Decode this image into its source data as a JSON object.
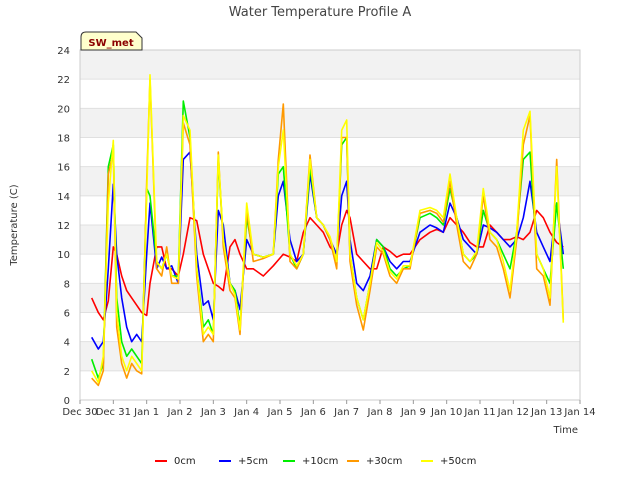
{
  "chart_data": {
    "type": "line",
    "title": "Water Temperature Profile A",
    "xlabel": "Time",
    "ylabel": "Temperature (C)",
    "badge": "SW_met",
    "ylim": [
      0,
      24
    ],
    "yticks": [
      0,
      2,
      4,
      6,
      8,
      10,
      12,
      14,
      16,
      18,
      20,
      22,
      24
    ],
    "xlim": [
      0,
      15
    ],
    "xticks": [
      {
        "pos": 0,
        "label": "Dec 30"
      },
      {
        "pos": 1,
        "label": "Dec 31"
      },
      {
        "pos": 2,
        "label": "Jan 1"
      },
      {
        "pos": 3,
        "label": "Jan 2"
      },
      {
        "pos": 4,
        "label": "Jan 3"
      },
      {
        "pos": 5,
        "label": "Jan 4"
      },
      {
        "pos": 6,
        "label": "Jan 5"
      },
      {
        "pos": 7,
        "label": "Jan 6"
      },
      {
        "pos": 8,
        "label": "Jan 7"
      },
      {
        "pos": 9,
        "label": "Jan 8"
      },
      {
        "pos": 10,
        "label": "Jan 9"
      },
      {
        "pos": 11,
        "label": "Jan 10"
      },
      {
        "pos": 12,
        "label": "Jan 11"
      },
      {
        "pos": 13,
        "label": "Jan 12"
      },
      {
        "pos": 14,
        "label": "Jan 13"
      },
      {
        "pos": 15,
        "label": "Jan 14"
      }
    ],
    "grid": "horizontal bands",
    "legend_position": "bottom",
    "series": [
      {
        "name": "0cm",
        "color": "#ff0000",
        "x": [
          0.35,
          0.55,
          0.7,
          0.85,
          1.0,
          1.1,
          1.25,
          1.4,
          1.55,
          1.7,
          1.85,
          2.0,
          2.1,
          2.3,
          2.45,
          2.6,
          2.75,
          2.95,
          3.1,
          3.3,
          3.5,
          3.7,
          3.85,
          4.0,
          4.15,
          4.3,
          4.5,
          4.65,
          4.8,
          5.0,
          5.2,
          5.5,
          5.8,
          5.95,
          6.1,
          6.3,
          6.5,
          6.7,
          6.9,
          7.1,
          7.3,
          7.5,
          7.7,
          7.85,
          8.0,
          8.1,
          8.3,
          8.5,
          8.7,
          8.9,
          9.1,
          9.3,
          9.5,
          9.7,
          9.9,
          10.2,
          10.5,
          10.7,
          10.9,
          11.1,
          11.3,
          11.5,
          11.7,
          11.9,
          12.1,
          12.3,
          12.5,
          12.7,
          12.9,
          13.1,
          13.3,
          13.5,
          13.7,
          13.9,
          14.1,
          14.3,
          14.5
        ],
        "y": [
          7.0,
          6.0,
          5.5,
          6.8,
          10.5,
          10.0,
          8.5,
          7.5,
          7.0,
          6.5,
          6.0,
          5.8,
          8.0,
          10.5,
          10.5,
          9.0,
          9.0,
          8.5,
          10.0,
          12.5,
          12.3,
          10.0,
          9.0,
          8.0,
          7.8,
          7.5,
          10.5,
          11.0,
          10.0,
          9.0,
          9.0,
          8.5,
          9.2,
          9.6,
          10.0,
          9.8,
          9.5,
          11.5,
          12.5,
          12.0,
          11.5,
          10.5,
          10.0,
          12.0,
          13.0,
          12.5,
          10.0,
          9.5,
          9.0,
          9.0,
          10.5,
          10.2,
          9.8,
          10.0,
          10.0,
          11.0,
          11.5,
          11.7,
          11.5,
          12.5,
          12.0,
          11.5,
          10.8,
          10.5,
          10.5,
          12.0,
          11.5,
          11.0,
          11.0,
          11.2,
          11.0,
          11.5,
          13.0,
          12.5,
          11.5,
          10.8,
          10.5
        ]
      },
      {
        "name": "+5cm",
        "color": "#0000ff",
        "x": [
          0.35,
          0.55,
          0.7,
          0.85,
          1.0,
          1.1,
          1.25,
          1.4,
          1.55,
          1.7,
          1.85,
          2.0,
          2.1,
          2.3,
          2.45,
          2.6,
          2.75,
          2.95,
          3.1,
          3.3,
          3.5,
          3.7,
          3.85,
          4.0,
          4.15,
          4.3,
          4.5,
          4.65,
          4.8,
          5.0,
          5.2,
          5.5,
          5.8,
          5.95,
          6.1,
          6.3,
          6.5,
          6.7,
          6.9,
          7.1,
          7.3,
          7.5,
          7.7,
          7.85,
          8.0,
          8.1,
          8.3,
          8.5,
          8.7,
          8.9,
          9.1,
          9.3,
          9.5,
          9.7,
          9.9,
          10.2,
          10.5,
          10.7,
          10.9,
          11.1,
          11.3,
          11.5,
          11.7,
          11.9,
          12.1,
          12.3,
          12.5,
          12.7,
          12.9,
          13.1,
          13.3,
          13.5,
          13.7,
          13.9,
          14.1,
          14.3,
          14.5
        ],
        "y": [
          4.3,
          3.5,
          4.0,
          9.0,
          14.8,
          10.0,
          7.0,
          5.0,
          4.0,
          4.5,
          4.0,
          10.0,
          13.5,
          9.0,
          9.8,
          9.0,
          9.2,
          8.0,
          16.5,
          17.0,
          10.0,
          6.5,
          6.8,
          5.5,
          13.0,
          12.0,
          8.0,
          7.5,
          6.2,
          11.0,
          10.0,
          9.8,
          10.0,
          14.0,
          15.0,
          11.0,
          9.5,
          10.0,
          15.5,
          12.5,
          12.0,
          11.0,
          10.0,
          14.0,
          15.0,
          11.0,
          8.0,
          7.5,
          8.5,
          11.0,
          10.5,
          9.5,
          9.0,
          9.5,
          9.5,
          11.5,
          12.0,
          11.8,
          11.5,
          13.5,
          12.5,
          11.0,
          10.5,
          10.0,
          12.0,
          11.8,
          11.5,
          11.0,
          10.5,
          11.0,
          12.5,
          15.0,
          11.5,
          10.5,
          9.5,
          13.5,
          10.0
        ]
      },
      {
        "name": "+10cm",
        "color": "#00ee00",
        "x": [
          0.35,
          0.55,
          0.7,
          0.85,
          1.0,
          1.1,
          1.25,
          1.4,
          1.55,
          1.7,
          1.85,
          2.0,
          2.1,
          2.3,
          2.45,
          2.6,
          2.75,
          2.95,
          3.1,
          3.3,
          3.5,
          3.7,
          3.85,
          4.0,
          4.15,
          4.3,
          4.5,
          4.65,
          4.8,
          5.0,
          5.2,
          5.5,
          5.8,
          5.95,
          6.1,
          6.3,
          6.5,
          6.7,
          6.9,
          7.1,
          7.3,
          7.5,
          7.7,
          7.85,
          8.0,
          8.1,
          8.3,
          8.5,
          8.7,
          8.9,
          9.1,
          9.3,
          9.5,
          9.7,
          9.9,
          10.2,
          10.5,
          10.7,
          10.9,
          11.1,
          11.3,
          11.5,
          11.7,
          11.9,
          12.1,
          12.3,
          12.5,
          12.7,
          12.9,
          13.1,
          13.3,
          13.5,
          13.7,
          13.9,
          14.1,
          14.3,
          14.5
        ],
        "y": [
          2.8,
          1.5,
          2.5,
          16.0,
          17.5,
          7.0,
          4.0,
          3.0,
          3.5,
          3.0,
          2.5,
          14.5,
          14.0,
          9.5,
          9.0,
          10.0,
          8.5,
          8.5,
          20.5,
          18.0,
          9.0,
          5.0,
          5.5,
          4.5,
          16.5,
          11.0,
          8.0,
          7.5,
          5.0,
          12.5,
          10.0,
          9.8,
          10.0,
          15.5,
          16.0,
          10.0,
          9.0,
          10.0,
          16.0,
          12.5,
          12.0,
          11.0,
          9.5,
          17.5,
          18.0,
          10.0,
          7.0,
          5.5,
          8.0,
          11.0,
          10.5,
          9.0,
          8.5,
          9.0,
          9.2,
          12.5,
          12.8,
          12.5,
          12.0,
          14.5,
          12.5,
          10.0,
          9.5,
          10.0,
          13.0,
          11.5,
          11.0,
          10.0,
          9.0,
          11.5,
          16.5,
          17.0,
          10.0,
          9.0,
          8.0,
          13.5,
          9.0
        ]
      },
      {
        "name": "+30cm",
        "color": "#ff9900",
        "x": [
          0.35,
          0.55,
          0.7,
          0.85,
          1.0,
          1.1,
          1.25,
          1.4,
          1.55,
          1.7,
          1.85,
          2.0,
          2.1,
          2.3,
          2.45,
          2.6,
          2.75,
          2.95,
          3.1,
          3.3,
          3.5,
          3.7,
          3.85,
          4.0,
          4.15,
          4.3,
          4.5,
          4.65,
          4.8,
          5.0,
          5.2,
          5.5,
          5.8,
          5.95,
          6.1,
          6.3,
          6.5,
          6.7,
          6.9,
          7.1,
          7.3,
          7.5,
          7.7,
          7.85,
          8.0,
          8.1,
          8.3,
          8.5,
          8.7,
          8.9,
          9.1,
          9.3,
          9.5,
          9.7,
          9.9,
          10.2,
          10.5,
          10.7,
          10.9,
          11.1,
          11.3,
          11.5,
          11.7,
          11.9,
          12.1,
          12.3,
          12.5,
          12.7,
          12.9,
          13.1,
          13.3,
          13.5,
          13.7,
          13.9,
          14.1,
          14.3,
          14.5
        ],
        "y": [
          1.5,
          1.0,
          2.0,
          15.5,
          17.0,
          5.0,
          2.5,
          1.5,
          2.5,
          2.0,
          1.8,
          15.0,
          22.0,
          9.0,
          8.5,
          10.5,
          8.0,
          8.0,
          19.0,
          17.5,
          8.5,
          4.0,
          4.5,
          4.0,
          17.0,
          10.5,
          7.5,
          7.0,
          4.5,
          13.0,
          9.5,
          9.7,
          10.0,
          16.5,
          20.3,
          9.5,
          9.0,
          10.0,
          16.8,
          12.5,
          12.0,
          11.0,
          9.0,
          18.0,
          18.0,
          9.5,
          6.5,
          4.8,
          7.5,
          10.5,
          10.0,
          8.5,
          8.0,
          9.0,
          9.0,
          12.8,
          13.0,
          12.8,
          12.2,
          15.0,
          12.0,
          9.5,
          9.0,
          10.0,
          14.0,
          11.0,
          10.5,
          9.0,
          7.0,
          11.0,
          17.5,
          19.5,
          9.0,
          8.5,
          6.5,
          16.5,
          5.5
        ]
      },
      {
        "name": "+50cm",
        "color": "#ffff00",
        "x": [
          0.35,
          0.55,
          0.7,
          0.85,
          1.0,
          1.1,
          1.25,
          1.4,
          1.55,
          1.7,
          1.85,
          2.0,
          2.1,
          2.3,
          2.45,
          2.6,
          2.75,
          2.95,
          3.1,
          3.3,
          3.5,
          3.7,
          3.85,
          4.0,
          4.15,
          4.3,
          4.5,
          4.65,
          4.8,
          5.0,
          5.2,
          5.5,
          5.8,
          5.95,
          6.1,
          6.3,
          6.5,
          6.7,
          6.9,
          7.1,
          7.3,
          7.5,
          7.7,
          7.85,
          8.0,
          8.1,
          8.3,
          8.5,
          8.7,
          8.9,
          9.1,
          9.3,
          9.5,
          9.7,
          9.9,
          10.2,
          10.5,
          10.7,
          10.9,
          11.1,
          11.3,
          11.5,
          11.7,
          11.9,
          12.1,
          12.3,
          12.5,
          12.7,
          12.9,
          13.1,
          13.3,
          13.5,
          13.7,
          13.9,
          14.1,
          14.3,
          14.5
        ],
        "y": [
          2.0,
          1.2,
          3.0,
          13.5,
          17.8,
          6.0,
          3.0,
          2.0,
          3.0,
          2.5,
          2.0,
          14.0,
          22.3,
          9.5,
          9.0,
          10.0,
          8.5,
          8.3,
          19.5,
          18.5,
          9.0,
          4.5,
          5.0,
          4.5,
          16.8,
          11.0,
          8.0,
          7.2,
          4.8,
          13.5,
          10.0,
          9.8,
          10.0,
          16.0,
          18.5,
          10.0,
          9.2,
          10.0,
          16.5,
          12.5,
          12.0,
          11.2,
          9.5,
          18.5,
          19.2,
          10.0,
          7.0,
          5.5,
          8.0,
          10.8,
          10.2,
          8.8,
          8.3,
          9.2,
          9.2,
          13.0,
          13.2,
          13.0,
          12.5,
          15.5,
          12.5,
          10.0,
          9.5,
          10.2,
          14.5,
          11.5,
          11.0,
          9.5,
          7.5,
          11.5,
          18.5,
          19.8,
          10.0,
          9.0,
          7.0,
          16.0,
          5.3
        ]
      }
    ]
  }
}
